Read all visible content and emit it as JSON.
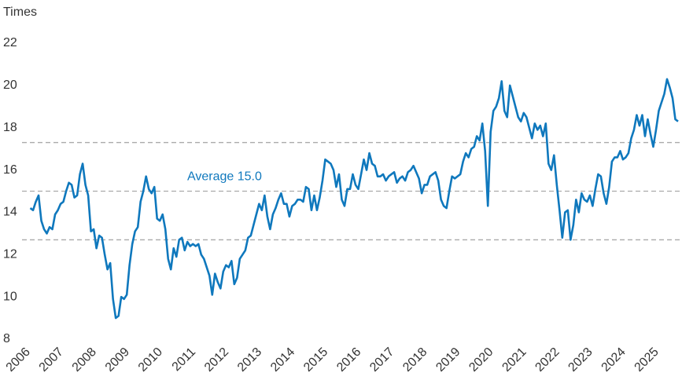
{
  "chart_data": {
    "type": "line",
    "y_axis_label": "Times",
    "categories": [
      "2006",
      null,
      null,
      null,
      null,
      null,
      null,
      null,
      null,
      null,
      null,
      null,
      "2007",
      null,
      null,
      null,
      null,
      null,
      null,
      null,
      null,
      null,
      null,
      null,
      "2008",
      null,
      null,
      null,
      null,
      null,
      null,
      null,
      null,
      null,
      null,
      null,
      "2009",
      null,
      null,
      null,
      null,
      null,
      null,
      null,
      null,
      null,
      null,
      null,
      "2010",
      null,
      null,
      null,
      null,
      null,
      null,
      null,
      null,
      null,
      null,
      null,
      "2011",
      null,
      null,
      null,
      null,
      null,
      null,
      null,
      null,
      null,
      null,
      null,
      "2012",
      null,
      null,
      null,
      null,
      null,
      null,
      null,
      null,
      null,
      null,
      null,
      "2013",
      null,
      null,
      null,
      null,
      null,
      null,
      null,
      null,
      null,
      null,
      null,
      "2014",
      null,
      null,
      null,
      null,
      null,
      null,
      null,
      null,
      null,
      null,
      null,
      "2015",
      null,
      null,
      null,
      null,
      null,
      null,
      null,
      null,
      null,
      null,
      null,
      "2016",
      null,
      null,
      null,
      null,
      null,
      null,
      null,
      null,
      null,
      null,
      null,
      "2017",
      null,
      null,
      null,
      null,
      null,
      null,
      null,
      null,
      null,
      null,
      null,
      "2018",
      null,
      null,
      null,
      null,
      null,
      null,
      null,
      null,
      null,
      null,
      null,
      "2019",
      null,
      null,
      null,
      null,
      null,
      null,
      null,
      null,
      null,
      null,
      null,
      "2020",
      null,
      null,
      null,
      null,
      null,
      null,
      null,
      null,
      null,
      null,
      null,
      "2021",
      null,
      null,
      null,
      null,
      null,
      null,
      null,
      null,
      null,
      null,
      null,
      "2022",
      null,
      null,
      null,
      null,
      null,
      null,
      null,
      null,
      null,
      null,
      null,
      "2023",
      null,
      null,
      null,
      null,
      null,
      null,
      null,
      null,
      null,
      null,
      null,
      "2024",
      null,
      null,
      null,
      null,
      null,
      null,
      null,
      null,
      null,
      null,
      null,
      "2025",
      null,
      null,
      null,
      null,
      null,
      null,
      null,
      null,
      null,
      null
    ],
    "series": [
      {
        "color": "#0f78bd",
        "values": [
          null,
          null,
          null,
          14.2,
          14.1,
          14.5,
          14.8,
          13.6,
          13.2,
          13.0,
          13.3,
          13.2,
          13.9,
          14.1,
          14.4,
          14.5,
          15.0,
          15.4,
          15.3,
          14.7,
          14.8,
          15.8,
          16.3,
          15.3,
          14.8,
          13.1,
          13.2,
          12.3,
          12.9,
          12.8,
          12.0,
          11.3,
          11.6,
          9.9,
          9.0,
          9.1,
          10.0,
          9.9,
          10.1,
          11.5,
          12.5,
          13.1,
          13.3,
          14.5,
          15.0,
          15.7,
          15.1,
          14.9,
          15.2,
          13.7,
          13.6,
          13.9,
          13.2,
          11.8,
          11.3,
          12.3,
          11.9,
          12.7,
          12.8,
          12.2,
          12.6,
          12.4,
          12.5,
          12.4,
          12.5,
          12.0,
          11.8,
          11.4,
          11.0,
          10.1,
          11.1,
          10.7,
          10.4,
          11.2,
          11.5,
          11.4,
          11.7,
          10.6,
          10.9,
          11.8,
          12.0,
          12.2,
          12.8,
          12.9,
          13.4,
          13.9,
          14.4,
          14.1,
          14.8,
          13.8,
          13.2,
          13.9,
          14.2,
          14.6,
          14.9,
          14.4,
          14.4,
          13.8,
          14.3,
          14.4,
          14.6,
          14.6,
          14.5,
          15.2,
          15.1,
          14.1,
          14.8,
          14.1,
          14.7,
          15.5,
          16.5,
          16.4,
          16.3,
          16.0,
          15.2,
          15.8,
          14.6,
          14.3,
          15.1,
          15.1,
          15.8,
          15.3,
          15.1,
          15.8,
          16.5,
          16.0,
          16.8,
          16.3,
          16.2,
          15.7,
          15.7,
          15.8,
          15.5,
          15.7,
          15.8,
          15.9,
          15.4,
          15.6,
          15.7,
          15.5,
          15.9,
          16.0,
          16.2,
          15.9,
          15.6,
          14.9,
          15.3,
          15.3,
          15.7,
          15.8,
          15.9,
          15.5,
          14.6,
          14.3,
          14.2,
          15.0,
          15.7,
          15.6,
          15.7,
          15.8,
          16.4,
          16.8,
          16.6,
          17.0,
          17.1,
          17.6,
          17.4,
          18.2,
          16.9,
          14.3,
          17.8,
          18.8,
          19.0,
          19.4,
          20.2,
          18.8,
          18.5,
          20.0,
          19.5,
          19.0,
          18.5,
          18.3,
          18.7,
          18.5,
          18.0,
          17.5,
          18.2,
          17.9,
          18.1,
          17.6,
          18.2,
          16.3,
          16.0,
          16.7,
          15.3,
          14.1,
          12.8,
          14.0,
          14.1,
          12.7,
          13.4,
          14.6,
          14.0,
          14.9,
          14.6,
          14.5,
          14.8,
          14.3,
          15.1,
          15.8,
          15.7,
          14.9,
          14.4,
          15.2,
          16.4,
          16.6,
          16.6,
          16.9,
          16.5,
          16.6,
          16.8,
          17.5,
          17.9,
          18.6,
          18.1,
          18.6,
          17.6,
          18.4,
          17.7,
          17.1,
          17.9,
          18.8,
          19.2,
          19.6,
          20.3,
          19.9,
          19.4,
          18.4,
          18.3
        ]
      }
    ],
    "reference_lines": [
      {
        "value": 15.0,
        "label": "Average 15.0"
      },
      {
        "value": 17.3
      },
      {
        "value": 12.7
      }
    ],
    "reference_color": "#aaaaaa",
    "ylim": [
      8,
      22
    ],
    "yticks": [
      8,
      10,
      12,
      14,
      16,
      18,
      20,
      22
    ],
    "grid": false
  }
}
